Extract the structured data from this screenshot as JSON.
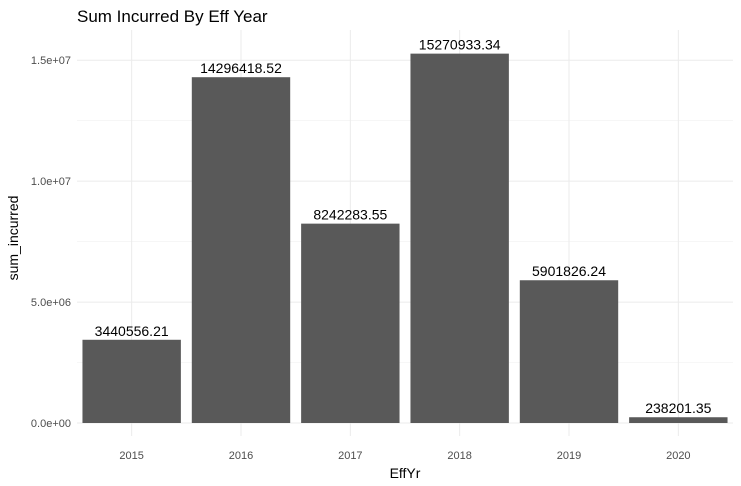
{
  "chart_data": {
    "type": "bar",
    "title": "Sum Incurred By Eff Year",
    "xlabel": "EffYr",
    "ylabel": "sum_incurred",
    "categories": [
      "2015",
      "2016",
      "2017",
      "2018",
      "2019",
      "2020"
    ],
    "values": [
      3440556.21,
      14296418.52,
      8242283.55,
      15270933.34,
      5901826.24,
      238201.35
    ],
    "data_labels": [
      "3440556.21",
      "14296418.52",
      "8242283.55",
      "15270933.34",
      "5901826.24",
      "238201.35"
    ],
    "y_ticks": [
      0,
      5000000,
      10000000,
      15000000
    ],
    "y_tick_labels": [
      "0.0e+00",
      "5.0e+06",
      "1.0e+07",
      "1.5e+07"
    ],
    "ylim": [
      0,
      16000000
    ],
    "grid": true,
    "bar_color": "#595959",
    "grid_color": "#ebebeb",
    "background_color": "#ffffff"
  }
}
